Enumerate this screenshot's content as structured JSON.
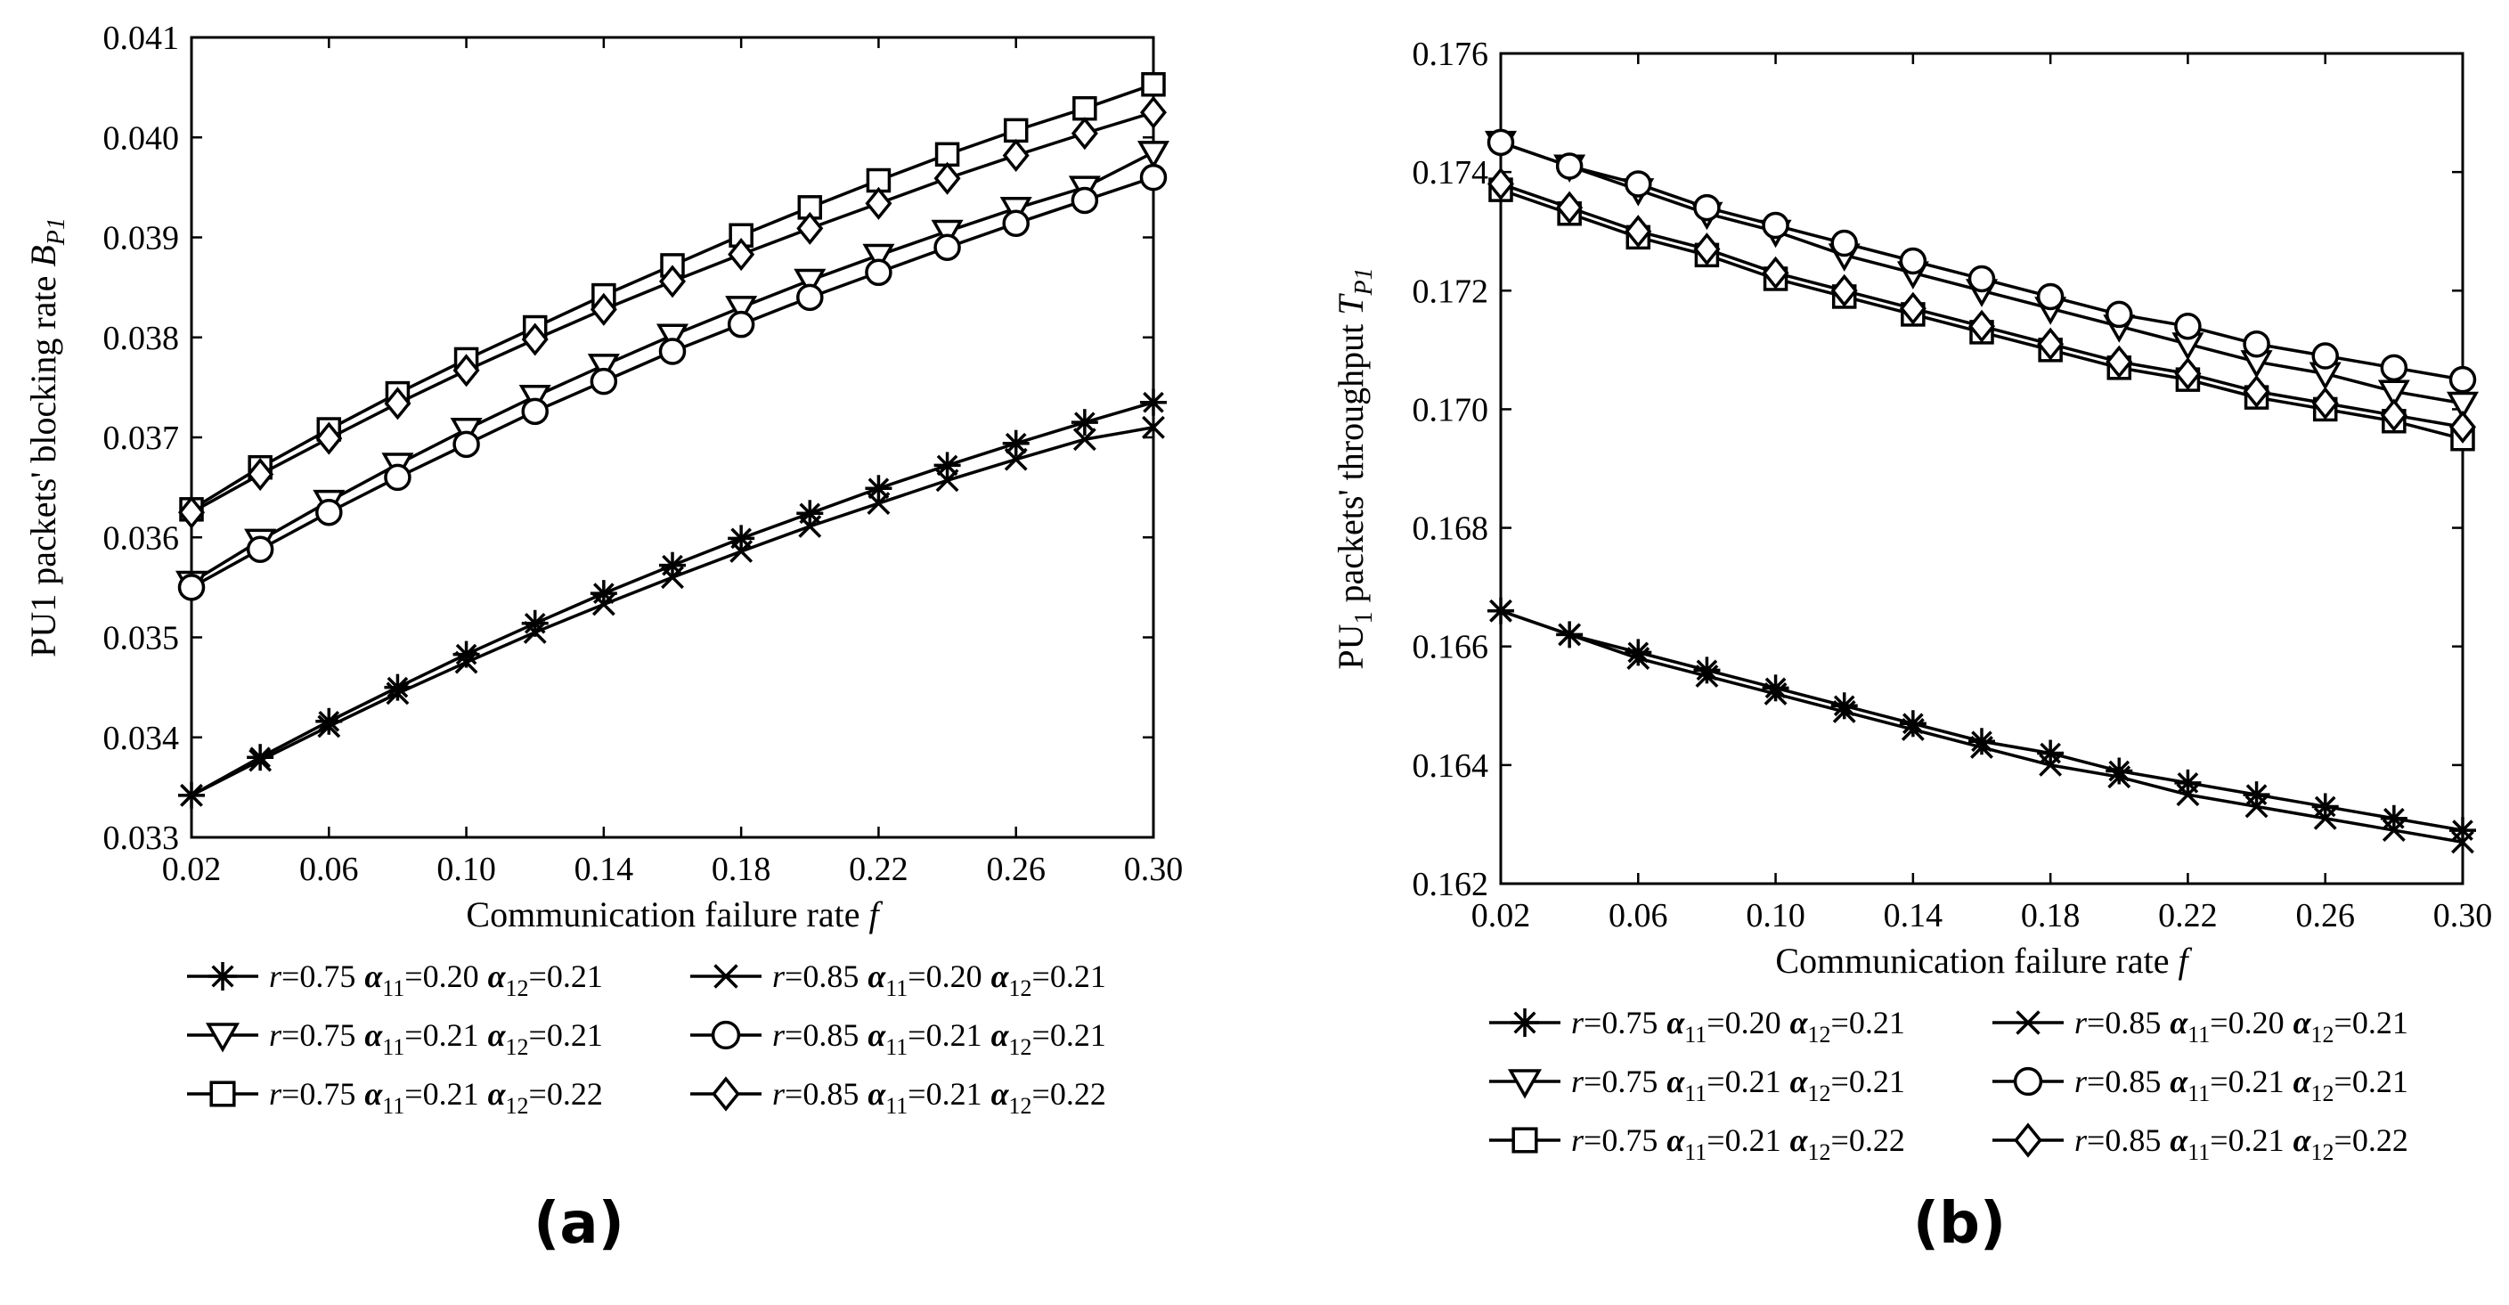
{
  "chart_data": [
    {
      "type": "line",
      "panel_label": "(a)",
      "xlabel": "Communication failure rate",
      "xlabel_var": "f",
      "ylabel": "PU1 packets' blocking rate",
      "ylabel_var": "B",
      "ylabel_sub": "P1",
      "xlim": [
        0.02,
        0.3
      ],
      "ylim": [
        0.033,
        0.041
      ],
      "x_ticks": [
        "0.02",
        "0.06",
        "0.10",
        "0.14",
        "0.18",
        "0.22",
        "0.26",
        "0.30"
      ],
      "y_ticks": [
        "0.033",
        "0.034",
        "0.035",
        "0.036",
        "0.037",
        "0.038",
        "0.039",
        "0.040",
        "0.041"
      ],
      "x": [
        0.02,
        0.04,
        0.06,
        0.08,
        0.1,
        0.12,
        0.14,
        0.16,
        0.18,
        0.2,
        0.22,
        0.24,
        0.26,
        0.28,
        0.3
      ],
      "series": [
        {
          "name": "r=0.75 α11=0.20 α12=0.21",
          "marker": "asterisk",
          "values": [
            0.03342,
            0.0338,
            0.03416,
            0.0345,
            0.03483,
            0.03514,
            0.03544,
            0.03572,
            0.03599,
            0.03624,
            0.03649,
            0.03672,
            0.03694,
            0.03715,
            0.03735
          ]
        },
        {
          "name": "r=0.85 α11=0.20 α12=0.21",
          "marker": "x",
          "values": [
            0.03342,
            0.03377,
            0.03411,
            0.03444,
            0.03475,
            0.03505,
            0.03533,
            0.0356,
            0.03586,
            0.03611,
            0.03634,
            0.03657,
            0.03678,
            0.03698,
            0.0371
          ]
        },
        {
          "name": "r=0.75 α11=0.21 α12=0.21",
          "marker": "triangle-down",
          "values": [
            0.03555,
            0.03597,
            0.03636,
            0.03673,
            0.03708,
            0.03741,
            0.03772,
            0.03802,
            0.0383,
            0.03857,
            0.03882,
            0.03906,
            0.03929,
            0.0395,
            0.03985
          ]
        },
        {
          "name": "r=0.85 α11=0.21 α12=0.21",
          "marker": "circle",
          "values": [
            0.0355,
            0.03588,
            0.03625,
            0.0366,
            0.03693,
            0.03726,
            0.03756,
            0.03786,
            0.03813,
            0.0384,
            0.03865,
            0.0389,
            0.03914,
            0.03937,
            0.0396
          ]
        },
        {
          "name": "r=0.75 α11=0.21 α12=0.22",
          "marker": "square",
          "values": [
            0.03628,
            0.0367,
            0.03708,
            0.03744,
            0.03778,
            0.0381,
            0.03842,
            0.03872,
            0.03902,
            0.0393,
            0.03957,
            0.03983,
            0.04007,
            0.04029,
            0.04053
          ]
        },
        {
          "name": "r=0.85 α11=0.21 α12=0.22",
          "marker": "diamond",
          "values": [
            0.03625,
            0.03663,
            0.03699,
            0.03734,
            0.03767,
            0.03798,
            0.03828,
            0.03856,
            0.03883,
            0.03909,
            0.03934,
            0.03959,
            0.03982,
            0.04004,
            0.04025
          ]
        }
      ]
    },
    {
      "type": "line",
      "panel_label": "(b)",
      "xlabel": "Communication failure rate",
      "xlabel_var": "f",
      "ylabel": "PU",
      "ylabel_sub1": "1",
      "ylabel_mid": " packets' throughput ",
      "ylabel_var": "T",
      "ylabel_sub": "P1",
      "xlim": [
        0.02,
        0.3
      ],
      "ylim": [
        0.162,
        0.176
      ],
      "x_ticks": [
        "0.02",
        "0.06",
        "0.10",
        "0.14",
        "0.18",
        "0.22",
        "0.26",
        "0.30"
      ],
      "y_ticks": [
        "0.162",
        "0.164",
        "0.166",
        "0.168",
        "0.170",
        "0.172",
        "0.174",
        "0.176"
      ],
      "x": [
        0.02,
        0.04,
        0.06,
        0.08,
        0.1,
        0.12,
        0.14,
        0.16,
        0.18,
        0.2,
        0.22,
        0.24,
        0.26,
        0.28,
        0.3
      ],
      "series": [
        {
          "name": "r=0.75 α11=0.20 α12=0.21",
          "marker": "asterisk",
          "values": [
            0.1666,
            0.1662,
            0.1659,
            0.1656,
            0.1653,
            0.165,
            0.1647,
            0.1644,
            0.1642,
            0.1639,
            0.1637,
            0.1635,
            0.1633,
            0.1631,
            0.1629
          ]
        },
        {
          "name": "r=0.85 α11=0.20 α12=0.21",
          "marker": "x",
          "values": [
            0.1666,
            0.1662,
            0.1658,
            0.1655,
            0.1652,
            0.1649,
            0.1646,
            0.1643,
            0.164,
            0.1638,
            0.1635,
            0.1633,
            0.1631,
            0.1629,
            0.1627
          ]
        },
        {
          "name": "r=0.75 α11=0.21 α12=0.21",
          "marker": "triangle-down",
          "values": [
            0.1745,
            0.1741,
            0.1737,
            0.1733,
            0.173,
            0.1726,
            0.1723,
            0.172,
            0.1717,
            0.1714,
            0.1711,
            0.1708,
            0.1706,
            0.1703,
            0.1701
          ]
        },
        {
          "name": "r=0.85 α11=0.21 α12=0.21",
          "marker": "circle",
          "values": [
            0.1745,
            0.1741,
            0.1738,
            0.1734,
            0.1731,
            0.1728,
            0.1725,
            0.1722,
            0.1719,
            0.1716,
            0.1714,
            0.1711,
            0.1709,
            0.1707,
            0.1705
          ]
        },
        {
          "name": "r=0.75 α11=0.21 α12=0.22",
          "marker": "square",
          "values": [
            0.1737,
            0.1733,
            0.1729,
            0.1726,
            0.1722,
            0.1719,
            0.1716,
            0.1713,
            0.171,
            0.1707,
            0.1705,
            0.1702,
            0.17,
            0.1698,
            0.1695
          ]
        },
        {
          "name": "r=0.85 α11=0.21 α12=0.22",
          "marker": "diamond",
          "values": [
            0.1738,
            0.1734,
            0.173,
            0.1727,
            0.1723,
            0.172,
            0.1717,
            0.1714,
            0.1711,
            0.1708,
            0.1706,
            0.1703,
            0.1701,
            0.1699,
            0.1697
          ]
        }
      ]
    }
  ],
  "legend": [
    {
      "marker": "asterisk",
      "r_label": "r",
      "r_value": "=0.75",
      "a1_label": "α",
      "a1_sub": "11",
      "a1_value": "=0.20",
      "a2_label": "α",
      "a2_sub": "12",
      "a2_value": "=0.21"
    },
    {
      "marker": "x",
      "r_label": "r",
      "r_value": "=0.85",
      "a1_label": "α",
      "a1_sub": "11",
      "a1_value": "=0.20",
      "a2_label": "α",
      "a2_sub": "12",
      "a2_value": "=0.21"
    },
    {
      "marker": "triangle-down",
      "r_label": "r",
      "r_value": "=0.75",
      "a1_label": "α",
      "a1_sub": "11",
      "a1_value": "=0.21",
      "a2_label": "α",
      "a2_sub": "12",
      "a2_value": "=0.21"
    },
    {
      "marker": "circle",
      "r_label": "r",
      "r_value": "=0.85",
      "a1_label": "α",
      "a1_sub": "11",
      "a1_value": "=0.21",
      "a2_label": "α",
      "a2_sub": "12",
      "a2_value": "=0.21"
    },
    {
      "marker": "square",
      "r_label": "r",
      "r_value": "=0.75",
      "a1_label": "α",
      "a1_sub": "11",
      "a1_value": "=0.21",
      "a2_label": "α",
      "a2_sub": "12",
      "a2_value": "=0.22"
    },
    {
      "marker": "diamond",
      "r_label": "r",
      "r_value": "=0.85",
      "a1_label": "α",
      "a1_sub": "11",
      "a1_value": "=0.21",
      "a2_label": "α",
      "a2_sub": "12",
      "a2_value": "=0.22"
    }
  ],
  "colors": {
    "line": "#000000",
    "background": "#ffffff"
  }
}
